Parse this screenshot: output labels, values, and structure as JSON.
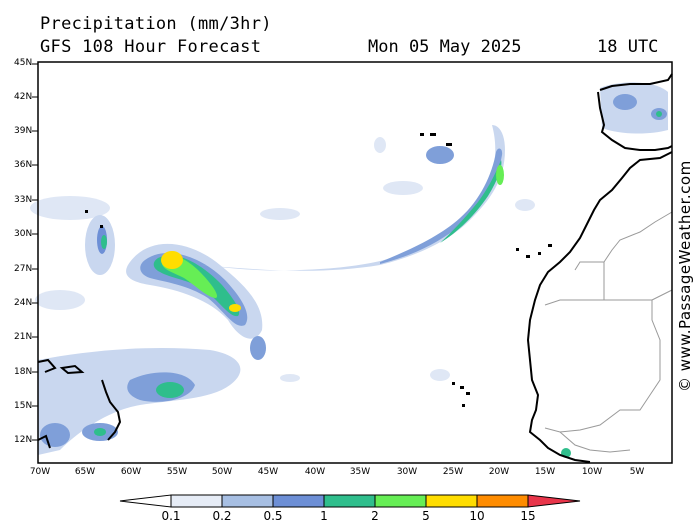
{
  "header": {
    "title": "Precipitation (mm/3hr)",
    "subtitle": "GFS 108 Hour Forecast",
    "date": "Mon 05 May 2025",
    "time": "18 UTC"
  },
  "credit": "© www.PassageWeather.com",
  "axes": {
    "lat_labels": [
      "45N",
      "42N",
      "39N",
      "36N",
      "33N",
      "30N",
      "27N",
      "24N",
      "21N",
      "18N",
      "15N",
      "12N"
    ],
    "lon_labels": [
      "70W",
      "65W",
      "60W",
      "55W",
      "50W",
      "45W",
      "40W",
      "35W",
      "30W",
      "25W",
      "20W",
      "15W",
      "10W",
      "5W"
    ],
    "lat_range": [
      10,
      45
    ],
    "lon_range": [
      -70,
      -2
    ]
  },
  "legend": {
    "labels": [
      "0.1",
      "0.2",
      "0.5",
      "1",
      "2",
      "5",
      "10",
      "15"
    ],
    "colors": [
      "#ffffff",
      "#e6ecf6",
      "#a7bfe3",
      "#6d8fd6",
      "#2fbe8c",
      "#66ee55",
      "#ffdd00",
      "#ff8c00",
      "#e8354a"
    ]
  },
  "colors": {
    "land_border": "#000000",
    "country_border": "#999999",
    "precip_light": "#c9d7ef",
    "precip_mid": "#7f9fd9",
    "precip_heavy": "#2fbe8c",
    "precip_max": "#ffdd00"
  }
}
